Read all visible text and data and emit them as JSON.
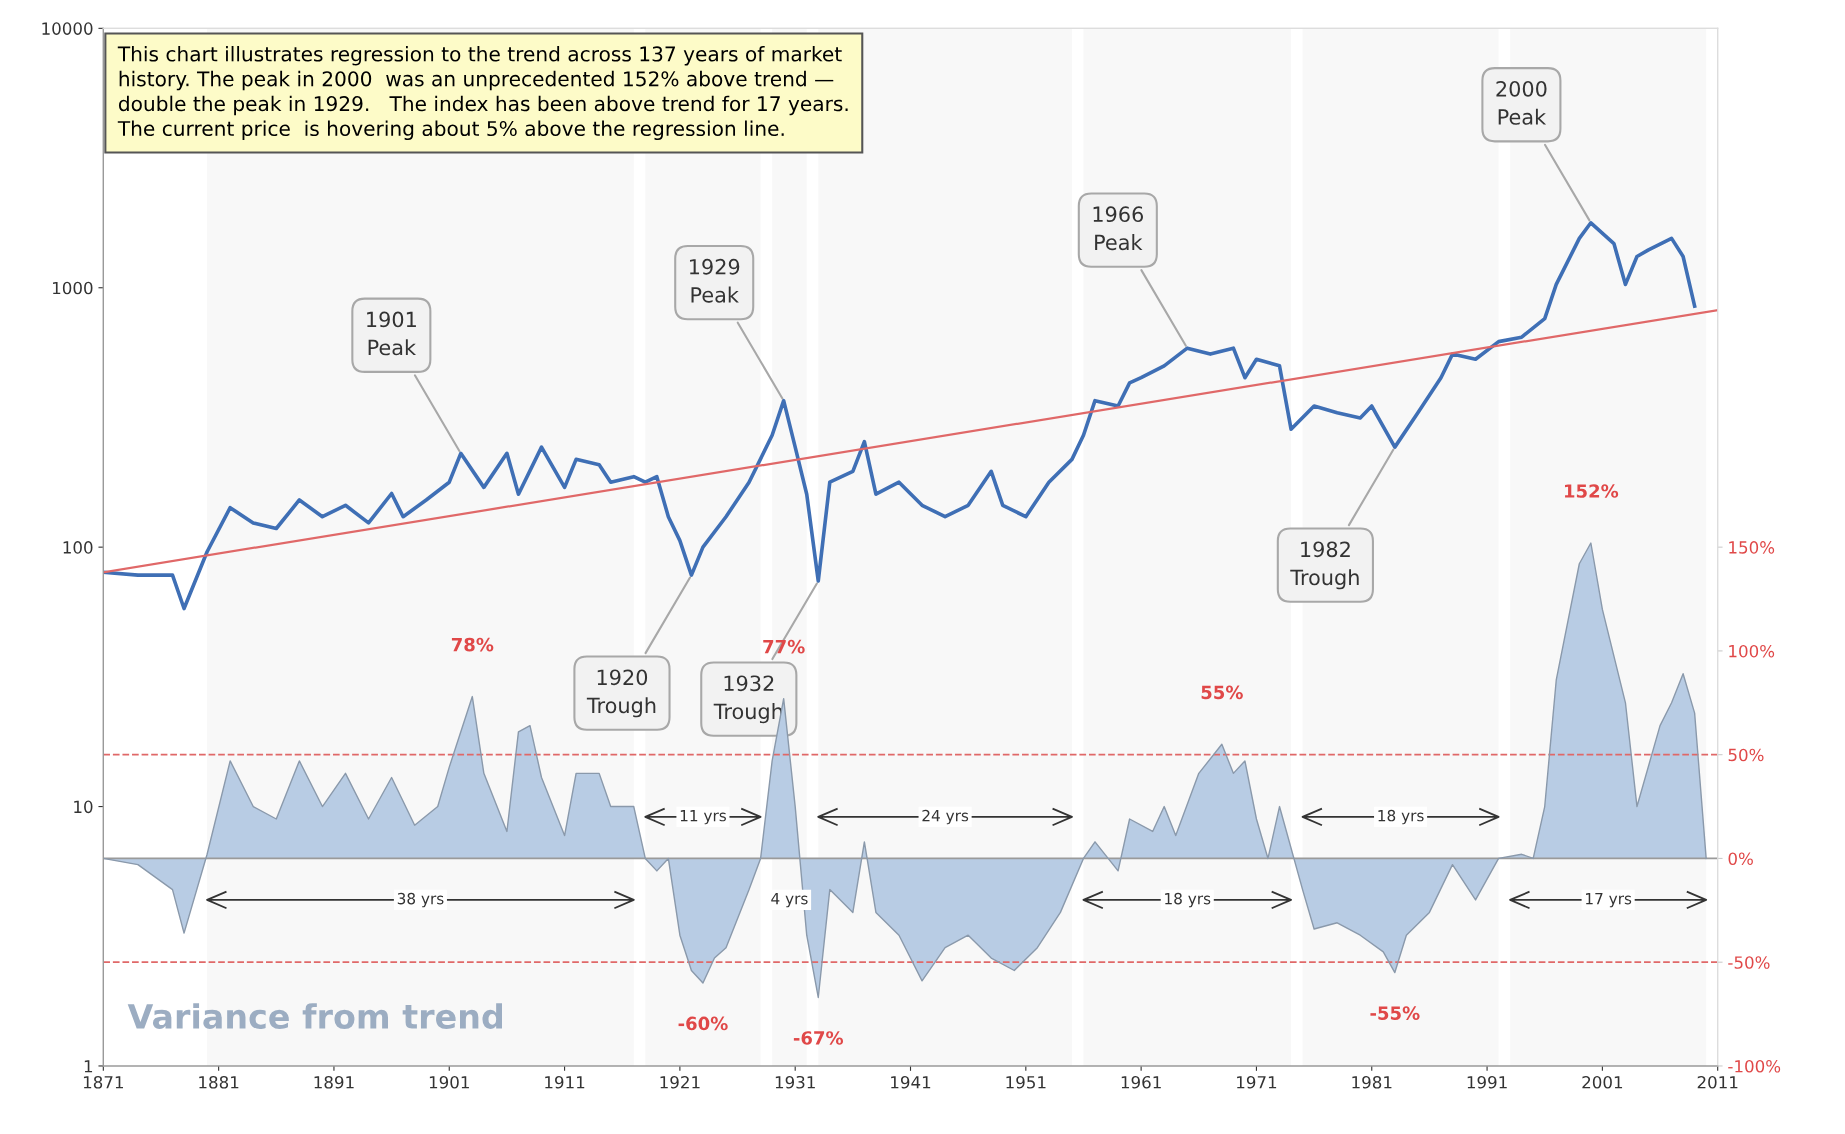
{
  "chart_data": {
    "type": "line",
    "log": true,
    "grid": false,
    "xlim": [
      1871,
      2011
    ],
    "xticks": [
      1871,
      1881,
      1891,
      1901,
      1911,
      1921,
      1931,
      1941,
      1951,
      1961,
      1971,
      1981,
      1991,
      2001,
      2011
    ],
    "ylim": [
      1,
      10000
    ],
    "yticks": [
      1,
      10,
      100,
      1000,
      10000
    ],
    "y2lim": [
      -100,
      400
    ],
    "y2ticks": [
      {
        "value": -100,
        "label": "-100%"
      },
      {
        "value": -50,
        "label": "-50%"
      },
      {
        "value": 0,
        "label": "0%"
      },
      {
        "value": 50,
        "label": "50%"
      },
      {
        "value": 100,
        "label": "100%"
      },
      {
        "value": 150,
        "label": "150%"
      }
    ],
    "series": [
      {
        "color": "#3f6fb5",
        "x": [
          1871,
          1874,
          1877,
          1878,
          1880,
          1882,
          1884,
          1886,
          1888,
          1890,
          1892,
          1894,
          1896,
          1897,
          1899,
          1901,
          1902,
          1904,
          1906,
          1907,
          1909,
          1911,
          1912,
          1914,
          1915,
          1917,
          1918,
          1919,
          1920,
          1921,
          1922,
          1923,
          1925,
          1927,
          1929,
          1930,
          1931,
          1932,
          1933,
          1934,
          1936,
          1937,
          1938,
          1940,
          1942,
          1944,
          1946,
          1948,
          1949,
          1951,
          1953,
          1955,
          1956,
          1957,
          1959,
          1960,
          1961,
          1963,
          1965,
          1967,
          1969,
          1970,
          1971,
          1973,
          1974,
          1976,
          1978,
          1980,
          1981,
          1983,
          1985,
          1987,
          1988,
          1990,
          1992,
          1994,
          1996,
          1997,
          1999,
          2000,
          2002,
          2003,
          2004,
          2005,
          2007,
          2008,
          2009
        ],
        "values": [
          80,
          78,
          78,
          58,
          96,
          142,
          124,
          118,
          152,
          131,
          145,
          124,
          161,
          131,
          152,
          178,
          230,
          170,
          230,
          160,
          243,
          170,
          218,
          208,
          178,
          187,
          178,
          187,
          131,
          106,
          78,
          100,
          131,
          178,
          270,
          367,
          243,
          160,
          74,
          178,
          196,
          255,
          160,
          178,
          145,
          131,
          145,
          196,
          145,
          131,
          178,
          218,
          270,
          367,
          350,
          430,
          450,
          500,
          585,
          555,
          585,
          450,
          530,
          500,
          285,
          350,
          330,
          315,
          350,
          243,
          330,
          450,
          555,
          530,
          620,
          645,
          760,
          1030,
          1550,
          1780,
          1480,
          1030,
          1320,
          1400,
          1550,
          1320,
          850
        ]
      },
      {
        "color": "#e06868",
        "x": [
          1871,
          2011
        ],
        "values": [
          80,
          820
        ]
      },
      {
        "type": "area",
        "axis": "y2",
        "name": "Variance from trend",
        "color": "#b8cce4",
        "x": [
          1871,
          1874,
          1877,
          1878,
          1880,
          1882,
          1884,
          1886,
          1888,
          1890,
          1892,
          1894,
          1896,
          1898,
          1900,
          1901,
          1903,
          1904,
          1906,
          1907,
          1908,
          1909,
          1911,
          1912,
          1914,
          1915,
          1917,
          1918,
          1919,
          1920,
          1921,
          1922,
          1923,
          1924,
          1925,
          1927,
          1928,
          1929,
          1930,
          1931,
          1932,
          1933,
          1934,
          1936,
          1937,
          1938,
          1940,
          1942,
          1944,
          1946,
          1948,
          1950,
          1952,
          1954,
          1956,
          1957,
          1959,
          1960,
          1962,
          1963,
          1964,
          1966,
          1968,
          1969,
          1970,
          1971,
          1972,
          1973,
          1975,
          1976,
          1978,
          1980,
          1982,
          1983,
          1984,
          1986,
          1988,
          1990,
          1992,
          1994,
          1995,
          1996,
          1997,
          1999,
          2000,
          2001,
          2003,
          2004,
          2006,
          2007,
          2008,
          2009,
          2010
        ],
        "values": [
          0,
          -3,
          -15,
          -36,
          2,
          47,
          25,
          19,
          47,
          25,
          41,
          19,
          39,
          16,
          25,
          44,
          78,
          41,
          13,
          61,
          64,
          39,
          11,
          41,
          41,
          25,
          25,
          0,
          -6,
          0,
          -37,
          -54,
          -60,
          -48,
          -43,
          -15,
          0,
          47,
          77,
          25,
          -37,
          -67,
          -15,
          -26,
          8,
          -26,
          -37,
          -59,
          -43,
          -37,
          -48,
          -54,
          -43,
          -26,
          0,
          8,
          -6,
          19,
          13,
          25,
          11,
          41,
          55,
          41,
          47,
          19,
          0,
          25,
          -15,
          -34,
          -31,
          -37,
          -45,
          -55,
          -37,
          -26,
          -3,
          -20,
          0,
          2,
          0,
          25,
          86,
          142,
          152,
          120,
          75,
          25,
          64,
          75,
          89,
          70,
          0
        ],
        "value_labels": [
          null,
          null,
          null,
          null,
          null,
          null,
          null,
          null,
          null,
          null,
          null,
          null,
          null,
          null,
          null,
          null,
          "78%",
          null,
          null,
          null,
          null,
          null,
          null,
          null,
          null,
          null,
          null,
          null,
          null,
          null,
          null,
          null,
          "-60%",
          null,
          null,
          null,
          null,
          null,
          "77%",
          null,
          null,
          "-67%",
          null,
          null,
          null,
          null,
          null,
          null,
          null,
          null,
          null,
          null,
          null,
          null,
          null,
          null,
          null,
          null,
          null,
          null,
          null,
          null,
          "55%",
          null,
          null,
          null,
          null,
          null,
          null,
          null,
          null,
          null,
          null,
          "-55%",
          null,
          null,
          null,
          null,
          null,
          null,
          null,
          null,
          null,
          null,
          "152%",
          null,
          null,
          null,
          null,
          null,
          null,
          null,
          null
        ]
      }
    ],
    "ref_lines": [
      {
        "axis": "y2",
        "value": 50,
        "color": "#e06868",
        "line_style": "dashed"
      },
      {
        "axis": "y2",
        "value": -50,
        "color": "#e06868",
        "line_style": "dashed"
      },
      {
        "axis": "y2",
        "value": 0,
        "color": "#9a9a9a",
        "line_style": "solid"
      }
    ],
    "bands": [
      {
        "axis": "x",
        "from": 1880,
        "to": 1917,
        "label": "38 yrs"
      },
      {
        "axis": "x",
        "from": 1918,
        "to": 1928,
        "label": "11 yrs"
      },
      {
        "axis": "x",
        "from": 1929,
        "to": 1932,
        "label": "4 yrs"
      },
      {
        "axis": "x",
        "from": 1933,
        "to": 1955,
        "label": "24 yrs"
      },
      {
        "axis": "x",
        "from": 1956,
        "to": 1974,
        "label": "18 yrs"
      },
      {
        "axis": "x",
        "from": 1975,
        "to": 1992,
        "label": "18 yrs"
      },
      {
        "axis": "x",
        "from": 1993,
        "to": 2010,
        "label": "17 yrs"
      }
    ],
    "annotations": [
      "This chart illustrates regression to the trend across 137 years of market\nhistory. The peak in 2000  was an unprecedented 152% above trend —\ndouble the peak in 1929.   The index has been above trend for 17 years.\nThe current price  is hovering about 5% above the regression line.",
      {
        "text": "1901\nPeak",
        "x": 1902,
        "y": 230
      },
      {
        "text": "1929\nPeak",
        "x": 1930,
        "y": 367
      },
      {
        "text": "1966\nPeak",
        "x": 1965,
        "y": 585
      },
      {
        "text": "2000\nPeak",
        "x": 2000,
        "y": 1780
      },
      {
        "text": "1920\nTrough",
        "x": 1922,
        "y": 78
      },
      {
        "text": "1932\nTrough",
        "x": 1933,
        "y": 74
      },
      {
        "text": "1982\nTrough",
        "x": 1983,
        "y": 243
      }
    ]
  }
}
